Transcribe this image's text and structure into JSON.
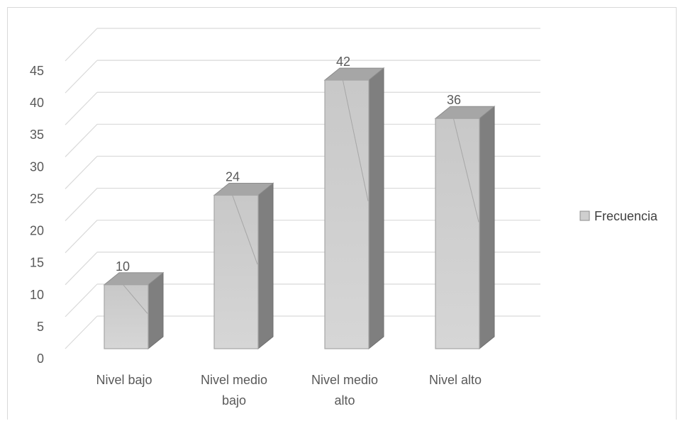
{
  "chart_data": {
    "type": "bar",
    "categories": [
      [
        "Nivel bajo"
      ],
      [
        "Nivel medio",
        "bajo"
      ],
      [
        "Nivel medio",
        "alto"
      ],
      [
        "Nivel alto"
      ]
    ],
    "series": [
      {
        "name": "Frecuencia",
        "values": [
          10,
          24,
          42,
          36
        ]
      }
    ],
    "ylim": [
      0,
      45
    ],
    "yticks": [
      0,
      5,
      10,
      15,
      20,
      25,
      30,
      35,
      40,
      45
    ],
    "grid": true,
    "legend": "right",
    "colors": {
      "bar_front": "#cfcfcf",
      "bar_side": "#7f7f7f",
      "bar_top": "#a6a6a6",
      "grid": "#d9d9d9",
      "text": "#595959"
    }
  }
}
